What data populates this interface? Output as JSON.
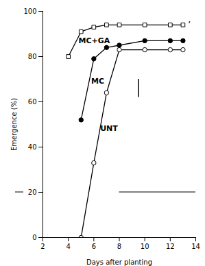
{
  "chart_data": {
    "type": "line",
    "xlabel": "Days after planting",
    "ylabel": "Emergence (%)",
    "xlim": [
      2,
      14
    ],
    "ylim": [
      0,
      100
    ],
    "xticks": [
      2,
      4,
      6,
      8,
      10,
      12,
      14
    ],
    "yticks": [
      0,
      20,
      40,
      60,
      80,
      100
    ],
    "grid": false,
    "series": [
      {
        "name": "MC+GA",
        "color": "#000000",
        "marker": "open_square",
        "line_style": "solid",
        "x": [
          4,
          5,
          6,
          7,
          8,
          10,
          12,
          13
        ],
        "values": [
          80,
          91,
          93,
          94,
          94,
          94,
          94,
          94
        ]
      },
      {
        "name": "MC",
        "color": "#000000",
        "marker": "circle",
        "line_style": "solid",
        "x": [
          5,
          6,
          7,
          8,
          10,
          12,
          13
        ],
        "values": [
          52,
          79,
          84,
          85,
          87,
          87,
          87
        ]
      },
      {
        "name": "UNT",
        "color": "#000000",
        "marker": "open_circle",
        "line_style": "solid",
        "x": [
          5,
          6,
          7,
          8,
          10,
          12,
          13
        ],
        "values": [
          0,
          33,
          64,
          83,
          83,
          83,
          83
        ]
      }
    ],
    "lsd": {
      "x": 9.5,
      "low": 62,
      "high": 70
    },
    "labels": [
      {
        "text": "MC+GA",
        "x": 4.8,
        "y": 86
      },
      {
        "text": "MC",
        "x": 5.8,
        "y": 68
      },
      {
        "text": "UNT",
        "x": 6.5,
        "y": 47
      }
    ],
    "annotations": [
      {
        "text": "’",
        "x": 13.4,
        "y": 94
      }
    ],
    "reference_y": 20
  }
}
